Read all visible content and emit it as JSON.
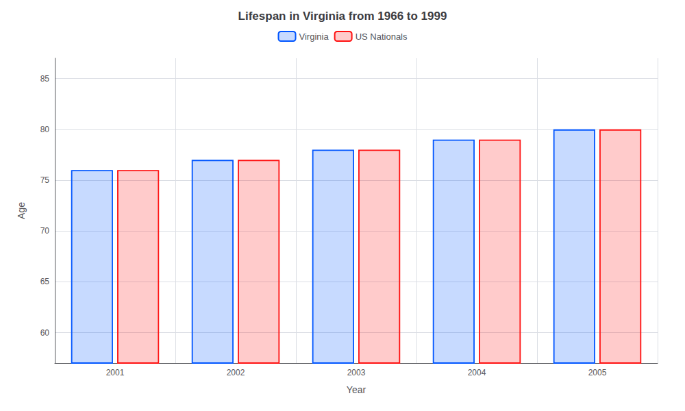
{
  "chart_data": {
    "type": "bar",
    "title": "Lifespan in Virginia from 1966 to 1999",
    "xlabel": "Year",
    "ylabel": "Age",
    "categories": [
      "2001",
      "2002",
      "2003",
      "2004",
      "2005"
    ],
    "series": [
      {
        "name": "Virginia",
        "color": "#0055ff",
        "values": [
          76,
          77,
          78,
          79,
          80
        ]
      },
      {
        "name": "US Nationals",
        "color": "#ff1111",
        "values": [
          76,
          77,
          78,
          79,
          80
        ]
      }
    ],
    "ylim": [
      57,
      87
    ],
    "yticks": [
      60,
      65,
      70,
      75,
      80,
      85
    ],
    "grid": true,
    "legend": "top"
  }
}
